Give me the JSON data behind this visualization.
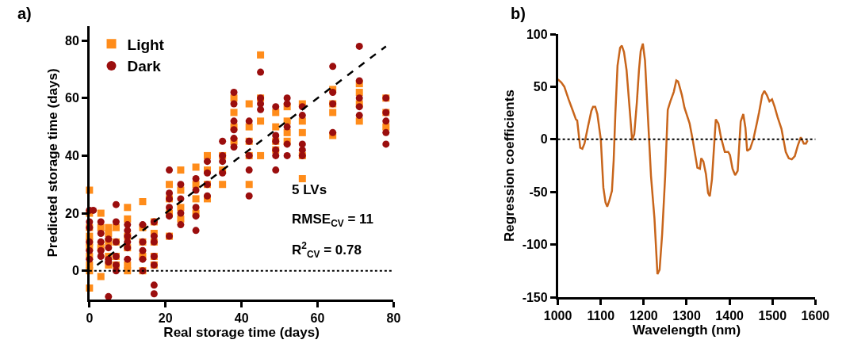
{
  "chart_data": [
    {
      "type": "scatter",
      "title": "a)",
      "xlabel": "Real storage time (days)",
      "ylabel": "Predicted storage time (days)",
      "xlim": [
        0,
        80
      ],
      "xticks": [
        0,
        20,
        40,
        60,
        80
      ],
      "ylim": [
        -10,
        85
      ],
      "yticks": [
        0,
        20,
        40,
        60,
        80
      ],
      "legend": "top left",
      "series": [
        {
          "name": "Light",
          "color": "#ff8c1a",
          "marker": "square",
          "x": [
            0,
            0,
            0,
            0,
            0,
            0,
            0,
            0,
            0,
            0,
            3,
            3,
            3,
            3,
            5,
            5,
            5,
            5,
            5,
            7,
            7,
            7,
            7,
            10,
            10,
            10,
            10,
            10,
            10,
            14,
            14,
            14,
            14,
            14,
            17,
            17,
            17,
            17,
            17,
            21,
            21,
            21,
            21,
            24,
            24,
            24,
            24,
            28,
            28,
            28,
            28,
            31,
            31,
            31,
            31,
            35,
            35,
            35,
            38,
            38,
            38,
            38,
            42,
            42,
            42,
            42,
            42,
            45,
            45,
            45,
            45,
            49,
            49,
            49,
            49,
            52,
            52,
            52,
            52,
            56,
            56,
            56,
            56,
            56,
            64,
            64,
            64,
            64,
            71,
            71,
            71,
            71,
            78,
            78,
            78
          ],
          "values": [
            28,
            20,
            15,
            12,
            10,
            8,
            5,
            2,
            0,
            -6,
            20,
            15,
            8,
            -2,
            15,
            13,
            10,
            5,
            2,
            15,
            10,
            5,
            2,
            22,
            18,
            12,
            8,
            2,
            0,
            24,
            15,
            10,
            5,
            0,
            17,
            13,
            10,
            5,
            2,
            30,
            25,
            20,
            12,
            35,
            28,
            22,
            18,
            36,
            30,
            25,
            20,
            40,
            35,
            30,
            25,
            40,
            35,
            30,
            60,
            55,
            50,
            45,
            58,
            50,
            45,
            40,
            30,
            75,
            60,
            52,
            40,
            55,
            50,
            45,
            42,
            57,
            52,
            48,
            45,
            58,
            52,
            48,
            40,
            32,
            63,
            58,
            55,
            47,
            65,
            62,
            58,
            52,
            60,
            55,
            50
          ]
        },
        {
          "name": "Dark",
          "color": "#9b0e0e",
          "marker": "circle",
          "x": [
            0,
            0,
            0,
            0,
            0,
            0,
            1,
            3,
            3,
            3,
            3,
            3,
            5,
            5,
            5,
            5,
            5,
            7,
            7,
            7,
            7,
            7,
            7,
            10,
            10,
            10,
            10,
            10,
            10,
            14,
            14,
            14,
            14,
            14,
            17,
            17,
            17,
            17,
            17,
            17,
            17,
            21,
            21,
            21,
            21,
            21,
            21,
            24,
            24,
            24,
            24,
            28,
            28,
            28,
            28,
            28,
            31,
            31,
            31,
            31,
            35,
            35,
            35,
            35,
            38,
            38,
            38,
            38,
            38,
            38,
            42,
            42,
            42,
            42,
            42,
            45,
            45,
            45,
            45,
            49,
            49,
            49,
            49,
            49,
            49,
            52,
            52,
            52,
            52,
            52,
            56,
            56,
            56,
            56,
            56,
            64,
            64,
            64,
            64,
            71,
            71,
            71,
            71,
            71,
            78,
            78,
            78,
            78,
            78
          ],
          "values": [
            21,
            17,
            15,
            10,
            7,
            4,
            21,
            17,
            13,
            10,
            7,
            5,
            11,
            8,
            4,
            3,
            -9,
            23,
            17,
            10,
            5,
            2,
            0,
            16,
            14,
            12,
            10,
            8,
            4,
            16,
            10,
            7,
            4,
            0,
            17,
            12,
            10,
            5,
            2,
            -5,
            -8,
            35,
            27,
            25,
            22,
            19,
            12,
            30,
            25,
            20,
            16,
            32,
            28,
            22,
            19,
            14,
            38,
            34,
            30,
            26,
            45,
            40,
            38,
            34,
            62,
            58,
            52,
            49,
            46,
            43,
            52,
            45,
            40,
            35,
            26,
            69,
            60,
            58,
            56,
            57,
            47,
            45,
            42,
            40,
            35,
            60,
            58,
            50,
            44,
            40,
            57,
            54,
            44,
            42,
            40,
            71,
            62,
            58,
            48,
            78,
            66,
            60,
            57,
            54,
            60,
            55,
            52,
            48,
            44
          ]
        },
        {
          "type": "line",
          "color": "#000000",
          "line_style": "dashed",
          "x": [
            2,
            78
          ],
          "values": [
            2,
            78
          ]
        }
      ],
      "ref_lines": [
        {
          "axis": "y",
          "value": 0,
          "color": "#000000",
          "line_style": "dotted"
        }
      ],
      "annotations": [
        "5 LVs",
        "RMSE$_{CV}$ = 11",
        "R$^{2}$$_{CV}$ = 0.78"
      ]
    },
    {
      "type": "line",
      "title": "b)",
      "xlabel": "Wavelength (nm)",
      "ylabel": "Regression coefficients",
      "xlim": [
        1000,
        1600
      ],
      "xticks": [
        1000,
        1100,
        1200,
        1300,
        1400,
        1500,
        1600
      ],
      "ylim": [
        -150,
        100
      ],
      "yticks": [
        -150,
        -100,
        -50,
        0,
        50,
        100
      ],
      "legend": false,
      "x": [
        1000,
        1008,
        1015,
        1025,
        1035,
        1042,
        1045,
        1048,
        1052,
        1057,
        1062,
        1070,
        1078,
        1082,
        1087,
        1092,
        1096,
        1100,
        1106,
        1111,
        1115,
        1120,
        1126,
        1130,
        1134,
        1139,
        1145,
        1149,
        1154,
        1160,
        1168,
        1173,
        1178,
        1184,
        1189,
        1193,
        1198,
        1203,
        1210,
        1217,
        1225,
        1232,
        1237,
        1243,
        1250,
        1256,
        1262,
        1270,
        1276,
        1280,
        1283,
        1289,
        1295,
        1307,
        1314,
        1325,
        1331,
        1334,
        1339,
        1345,
        1350,
        1354,
        1359,
        1368,
        1374,
        1380,
        1389,
        1397,
        1401,
        1407,
        1413,
        1419,
        1426,
        1432,
        1437,
        1441,
        1448,
        1456,
        1464,
        1469,
        1476,
        1481,
        1487,
        1493,
        1499,
        1505,
        1512,
        1521,
        1531,
        1538,
        1545,
        1552,
        1559,
        1566,
        1573,
        1578,
        1582
      ],
      "series": [
        {
          "color": "#c8651b",
          "values": [
            57,
            54,
            50,
            38,
            27,
            19,
            18,
            7,
            -8,
            -9,
            -4,
            12,
            27,
            31,
            31,
            24,
            12,
            0,
            -46,
            -60,
            -64,
            -58,
            -49,
            -20,
            25,
            70,
            87,
            89,
            83,
            66,
            25,
            -1,
            5,
            35,
            66,
            84,
            91,
            75,
            20,
            -35,
            -75,
            -128,
            -124,
            -90,
            -35,
            28,
            36,
            45,
            56,
            55,
            51,
            42,
            30,
            15,
            0,
            -27,
            -28,
            -18,
            -21,
            -33,
            -51,
            -54,
            -38,
            19,
            15,
            2,
            -12,
            -12,
            -15,
            -28,
            -34,
            -30,
            17,
            24,
            11,
            -11,
            -9,
            1,
            16,
            26,
            42,
            46,
            42,
            36,
            38,
            31,
            21,
            10,
            -12,
            -18,
            -19,
            -16,
            -6,
            2,
            -4,
            -4,
            -1
          ]
        }
      ],
      "ref_lines": [
        {
          "axis": "y",
          "value": 0,
          "color": "#000000",
          "line_style": "dotted"
        }
      ]
    }
  ]
}
